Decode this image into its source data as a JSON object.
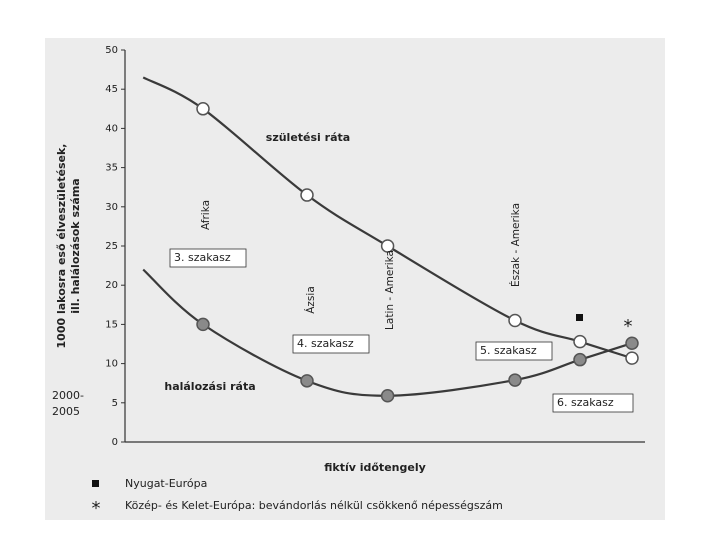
{
  "chart_data": {
    "type": "line",
    "ylabel": [
      "1000 lakosra eső élveszületések,",
      "ill. halálozások száma"
    ],
    "xlabel": "fiktív időtengely",
    "x": [
      3.5,
      15,
      35,
      50.5,
      75,
      87.5,
      97.5
    ],
    "xlim": [
      0,
      100
    ],
    "ylim": [
      0,
      50
    ],
    "yticks": [
      0,
      5,
      10,
      15,
      20,
      25,
      30,
      35,
      40,
      45,
      50
    ],
    "series": [
      {
        "name": "születési ráta",
        "color": "#3a3a3a",
        "marker_fill": "#ffffff",
        "values": [
          46.5,
          42.5,
          31.5,
          25,
          15.5,
          12.8,
          10.7
        ]
      },
      {
        "name": "halálozási ráta",
        "color": "#3a3a3a",
        "marker_fill": "#8a8a8a",
        "values": [
          22,
          15,
          7.8,
          5.9,
          7.9,
          10.5,
          12.6
        ]
      }
    ],
    "regions": [
      "Afrika",
      "Ázsia",
      "Latin - Amerika",
      "Észak - Amerika"
    ],
    "stages": [
      "3. szakasz",
      "4. szakasz",
      "5. szakasz",
      "6. szakasz"
    ],
    "period": [
      "2000-",
      "2005"
    ],
    "legend": [
      {
        "symbol": "square",
        "label": "Nyugat-Európa"
      },
      {
        "symbol": "star",
        "label": "Közép- és Kelet-Európa: bevándorlás nélkül csökkenő népességszám"
      }
    ]
  }
}
